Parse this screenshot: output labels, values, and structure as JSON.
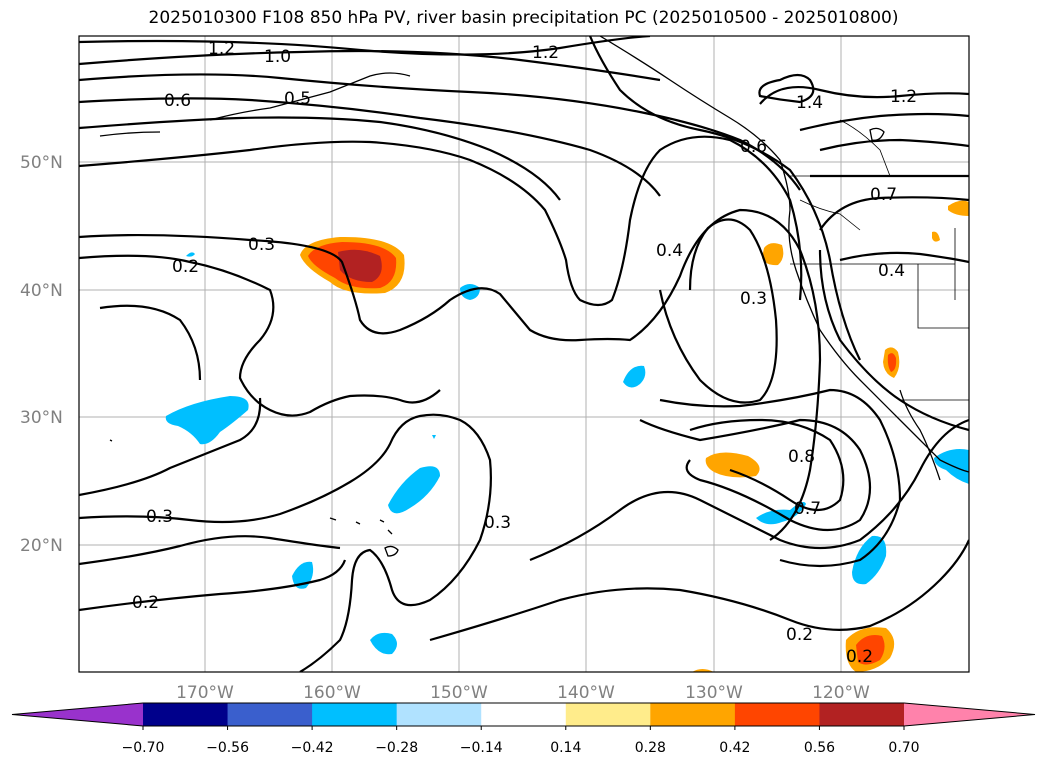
{
  "title": "2025010300 F108 850 hPa PV, river basin precipitation PC (2025010500 - 2025010800)",
  "map": {
    "lat_labels": [
      "50°N",
      "40°N",
      "30°N",
      "20°N"
    ],
    "lon_labels": [
      "170°W",
      "160°W",
      "150°W",
      "140°W",
      "130°W",
      "120°W"
    ],
    "contour_labels": [
      "1.2",
      "1.0",
      "0.6",
      "0.5",
      "1.2",
      "1.4",
      "1.2",
      "0.3",
      "0.2",
      "0.4",
      "0.3",
      "0.7",
      "0.4",
      "0.8",
      "0.7",
      "0.3",
      "0.3",
      "0.2",
      "0.2",
      "0.2",
      "0.6"
    ]
  },
  "colorbar": {
    "ticks": [
      "−0.70",
      "−0.56",
      "−0.42",
      "−0.28",
      "−0.14",
      "0.14",
      "0.28",
      "0.42",
      "0.56",
      "0.70"
    ],
    "colors": [
      "#9932cc",
      "#00008b",
      "#3a5fcd",
      "#00bfff",
      "#b0e2ff",
      "#ffffff",
      "#ffec8b",
      "#ffa500",
      "#ff4500",
      "#b22222",
      "#ff82ab"
    ]
  }
}
